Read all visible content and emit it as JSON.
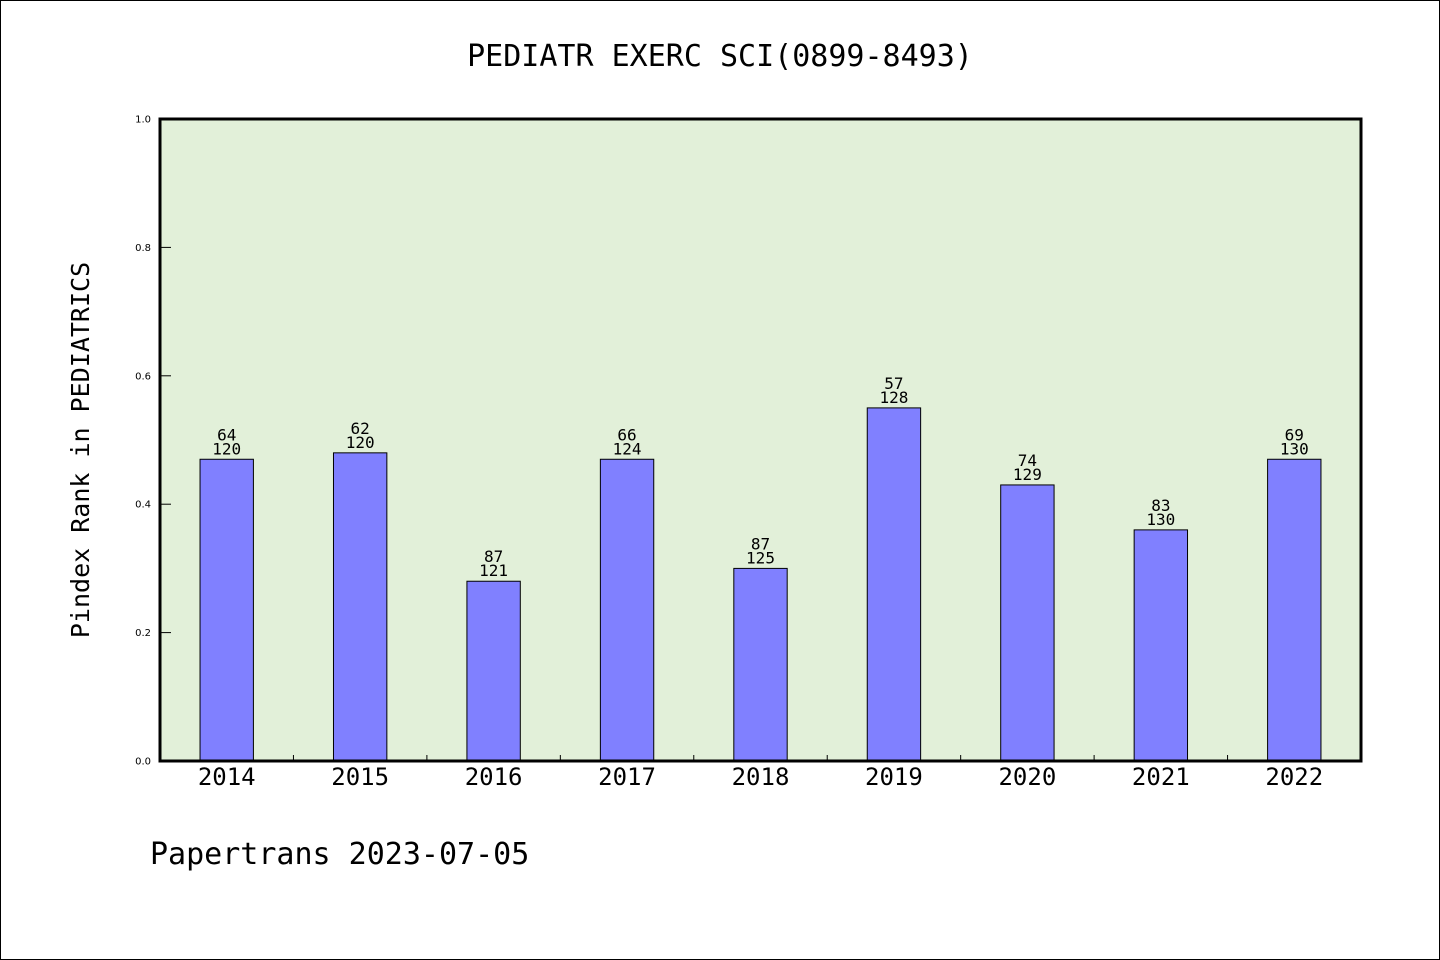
{
  "chart_data": {
    "type": "bar",
    "title": "PEDIATR EXERC SCI(0899-8493)",
    "ylabel": "Pindex Rank in PEDIATRICS",
    "categories": [
      "2014",
      "2015",
      "2016",
      "2017",
      "2018",
      "2019",
      "2020",
      "2021",
      "2022"
    ],
    "values": [
      0.47,
      0.48,
      0.28,
      0.47,
      0.3,
      0.55,
      0.43,
      0.36,
      0.47
    ],
    "data_labels": [
      [
        "64",
        "120"
      ],
      [
        "62",
        "120"
      ],
      [
        "87",
        "121"
      ],
      [
        "66",
        "124"
      ],
      [
        "87",
        "125"
      ],
      [
        "57",
        "128"
      ],
      [
        "74",
        "129"
      ],
      [
        "83",
        "130"
      ],
      [
        "69",
        "130"
      ]
    ],
    "ylim": [
      0,
      1.0
    ],
    "yticks": [
      0,
      0.2,
      0.4,
      0.6,
      0.8,
      1.0
    ],
    "ytick_labels": [
      "0.0",
      "0.2",
      "0.4",
      "0.6",
      "0.8",
      "1.0"
    ],
    "grid": false,
    "colors": {
      "bar": "#8080ff",
      "bar_edge": "#000000",
      "plot_background": "#e2f0d9"
    }
  },
  "footer": {
    "text": "Papertrans 2023-07-05"
  }
}
